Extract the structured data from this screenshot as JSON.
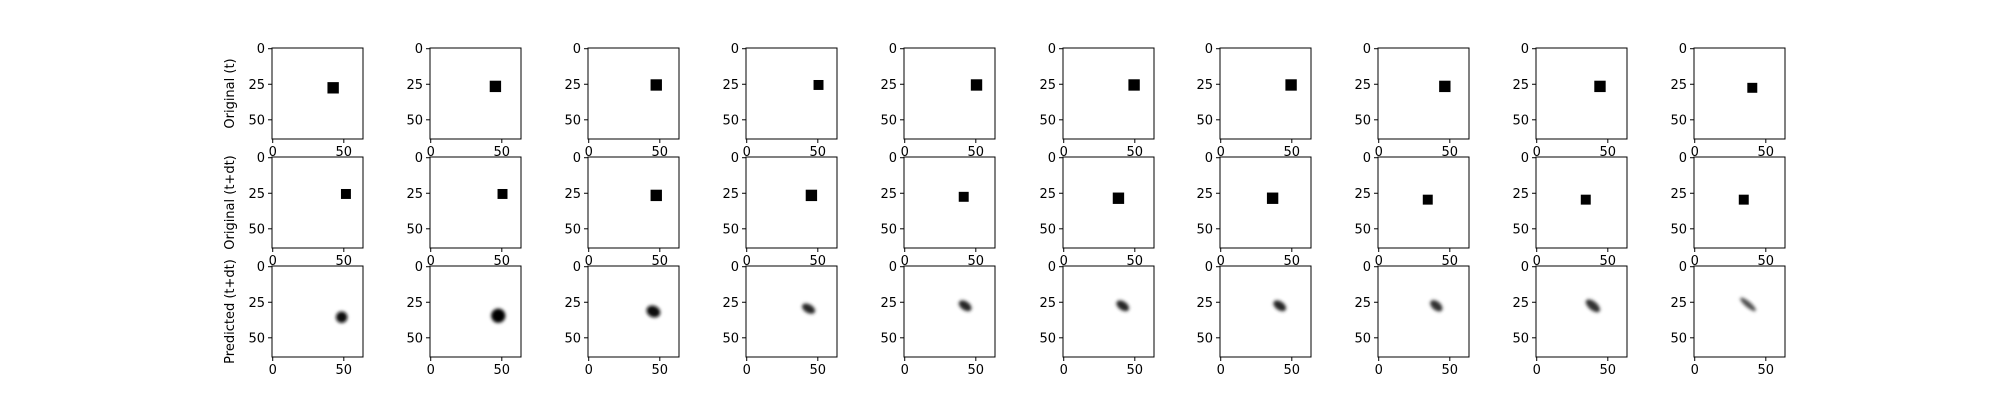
{
  "figure": {
    "background": "#ffffff",
    "row_labels": [
      "Original (t)",
      "Original (t+dt)",
      "Predicted (t+dt)"
    ]
  },
  "chart_data": {
    "type": "heatmap",
    "image_size": 64,
    "xticks": [
      0,
      50
    ],
    "yticks": [
      0,
      25,
      50
    ],
    "colormap": "gray_r",
    "rows": [
      {
        "ylabel": "Original (t)",
        "kind": "square",
        "cells": [
          {
            "x": 43,
            "y": 28,
            "size": 8
          },
          {
            "x": 46,
            "y": 27,
            "size": 8
          },
          {
            "x": 48,
            "y": 26,
            "size": 8
          },
          {
            "x": 51,
            "y": 26,
            "size": 7
          },
          {
            "x": 51,
            "y": 26,
            "size": 8
          },
          {
            "x": 50,
            "y": 26,
            "size": 8
          },
          {
            "x": 50,
            "y": 26,
            "size": 8
          },
          {
            "x": 47,
            "y": 27,
            "size": 8
          },
          {
            "x": 45,
            "y": 27,
            "size": 8
          },
          {
            "x": 41,
            "y": 28,
            "size": 7
          }
        ]
      },
      {
        "ylabel": "Original (t+dt)",
        "kind": "square",
        "cells": [
          {
            "x": 52,
            "y": 26,
            "size": 7
          },
          {
            "x": 51,
            "y": 26,
            "size": 7
          },
          {
            "x": 48,
            "y": 27,
            "size": 8
          },
          {
            "x": 46,
            "y": 27,
            "size": 8
          },
          {
            "x": 42,
            "y": 28,
            "size": 7
          },
          {
            "x": 39,
            "y": 29,
            "size": 8
          },
          {
            "x": 37,
            "y": 29,
            "size": 8
          },
          {
            "x": 35,
            "y": 30,
            "size": 7
          },
          {
            "x": 35,
            "y": 30,
            "size": 7
          },
          {
            "x": 35,
            "y": 30,
            "size": 7
          }
        ]
      },
      {
        "ylabel": "Predicted (t+dt)",
        "kind": "blob",
        "cells": [
          {
            "x": 49,
            "y": 36,
            "rx": 4,
            "ry": 4,
            "angle": 0,
            "intensity": 0.95
          },
          {
            "x": 48,
            "y": 35,
            "rx": 5,
            "ry": 5,
            "angle": 20,
            "intensity": 1.0
          },
          {
            "x": 46,
            "y": 32,
            "rx": 5,
            "ry": 4,
            "angle": 25,
            "intensity": 0.95
          },
          {
            "x": 44,
            "y": 30,
            "rx": 5,
            "ry": 3,
            "angle": 30,
            "intensity": 0.85
          },
          {
            "x": 43,
            "y": 28,
            "rx": 5,
            "ry": 3,
            "angle": 35,
            "intensity": 0.85
          },
          {
            "x": 42,
            "y": 28,
            "rx": 5,
            "ry": 3,
            "angle": 35,
            "intensity": 0.85
          },
          {
            "x": 42,
            "y": 28,
            "rx": 5,
            "ry": 3,
            "angle": 35,
            "intensity": 0.85
          },
          {
            "x": 41,
            "y": 28,
            "rx": 5,
            "ry": 3,
            "angle": 40,
            "intensity": 0.8
          },
          {
            "x": 40,
            "y": 28,
            "rx": 6,
            "ry": 3,
            "angle": 40,
            "intensity": 0.8
          },
          {
            "x": 38,
            "y": 27,
            "rx": 7,
            "ry": 2,
            "angle": 40,
            "intensity": 0.7
          }
        ]
      }
    ]
  }
}
